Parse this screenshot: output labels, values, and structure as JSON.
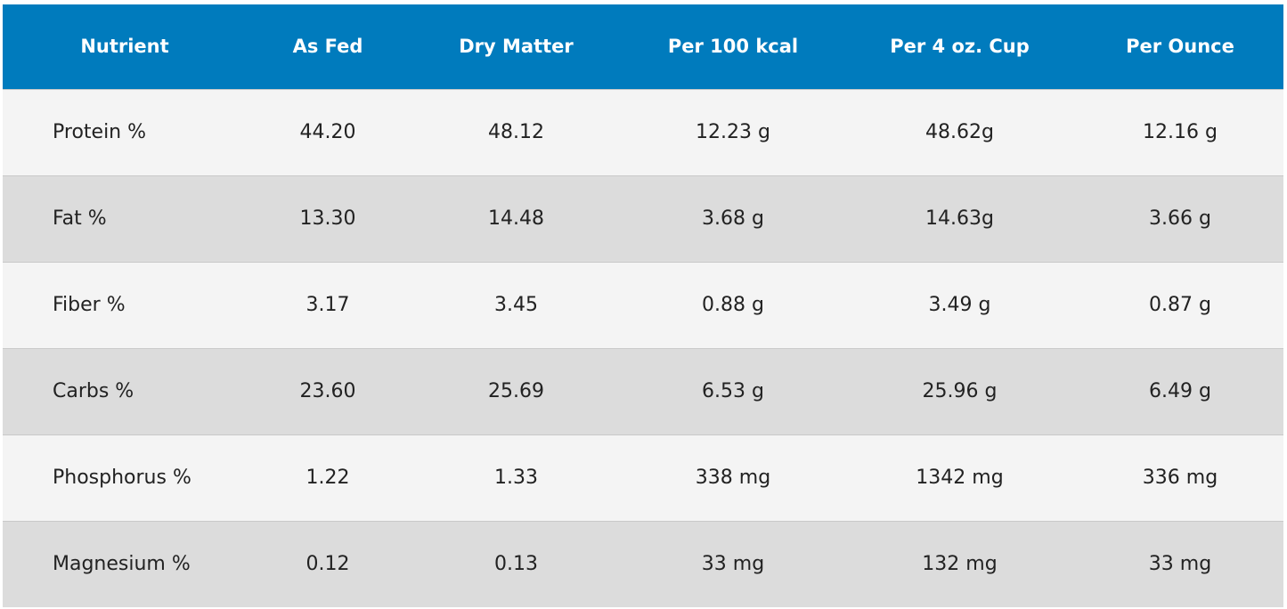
{
  "table": {
    "headers": [
      "Nutrient",
      "As Fed",
      "Dry Matter",
      "Per 100 kcal",
      "Per 4 oz. Cup",
      "Per Ounce"
    ],
    "rows": [
      [
        "Protein %",
        "44.20",
        "48.12",
        "12.23 g",
        "48.62g",
        "12.16 g"
      ],
      [
        "Fat %",
        "13.30",
        "14.48",
        "3.68 g",
        "14.63g",
        "3.66 g"
      ],
      [
        "Fiber %",
        "3.17",
        "3.45",
        "0.88 g",
        "3.49 g",
        "0.87 g"
      ],
      [
        "Carbs %",
        "23.60",
        "25.69",
        "6.53 g",
        "25.96 g",
        "6.49 g"
      ],
      [
        "Phosphorus %",
        "1.22",
        "1.33",
        "338 mg",
        "1342 mg",
        "336 mg"
      ],
      [
        "Magnesium %",
        "0.12",
        "0.13",
        "33 mg",
        "132 mg",
        "33 mg"
      ]
    ]
  },
  "colors": {
    "header_bg": "#007bbd",
    "header_text": "#ffffff",
    "row_light": "#f4f4f4",
    "row_dark": "#dcdcdc",
    "body_text": "#222222"
  }
}
